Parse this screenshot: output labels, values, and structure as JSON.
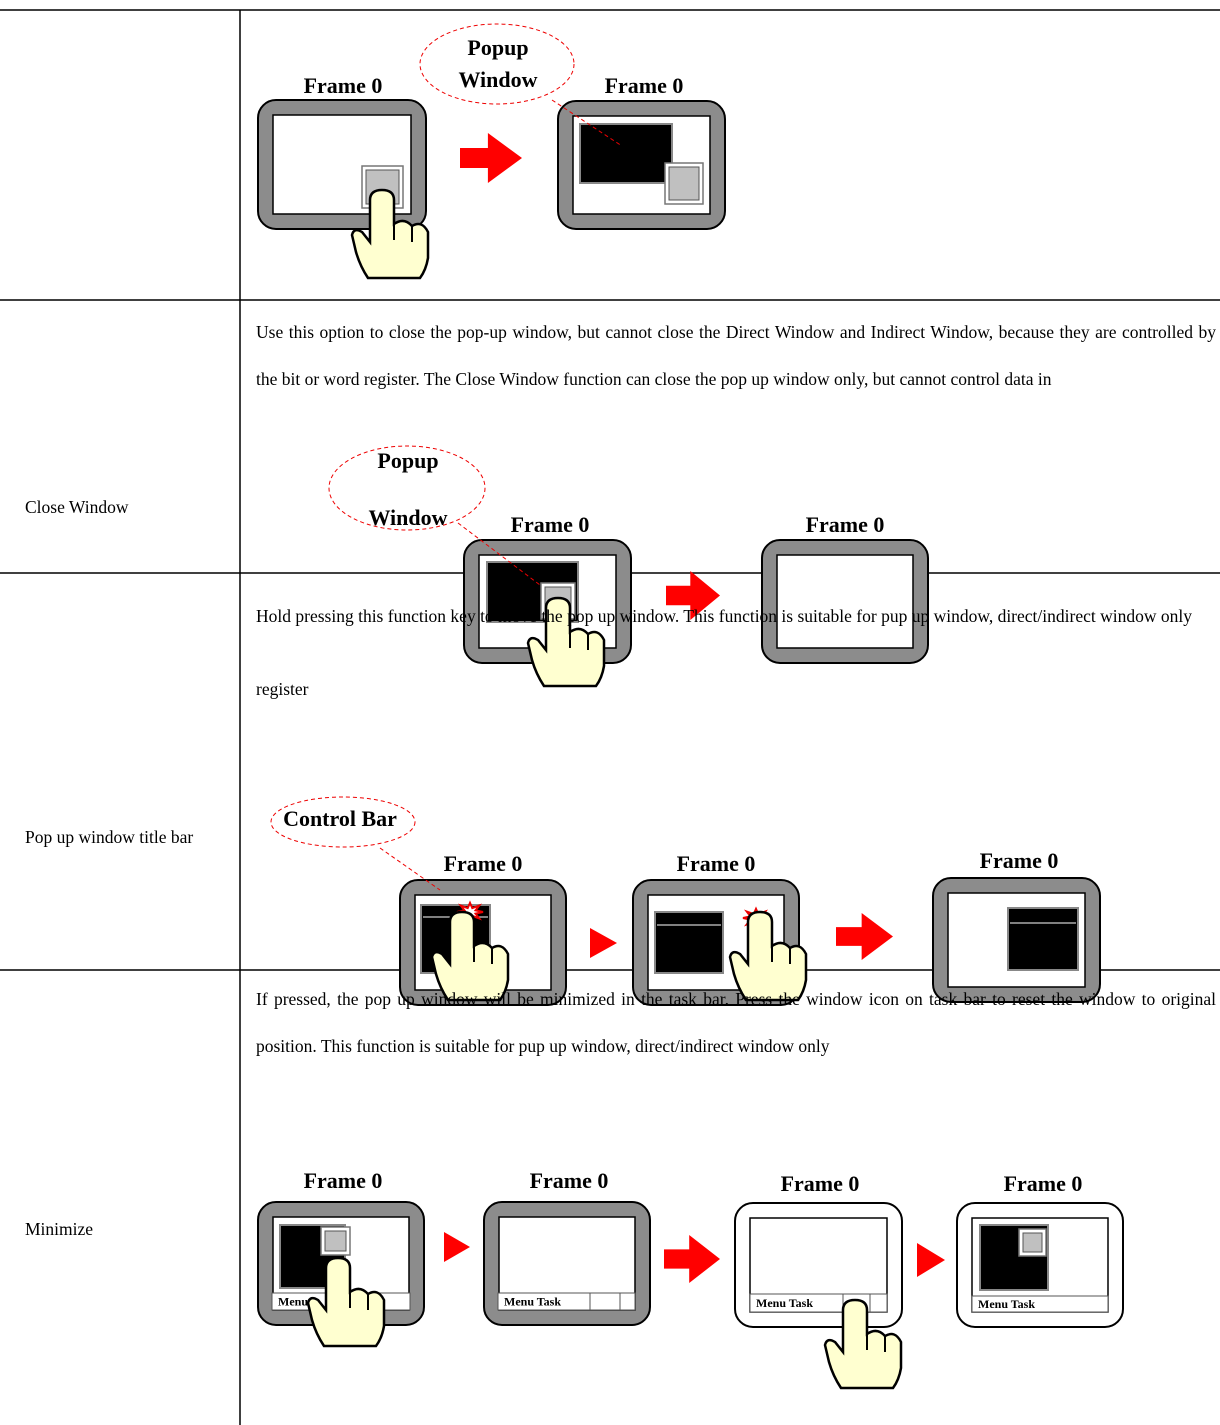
{
  "table": {
    "rows": [
      {
        "figure": {
          "frames": [
            "Frame 0",
            "Frame 0"
          ],
          "callout": [
            "Popup",
            "Window"
          ]
        }
      },
      {
        "label": "Close Window",
        "text": "Use this option to close the pop-up window, but cannot close the Direct Window and Indirect Window, because they are controlled by the bit or word register. The Close Window function can close the pop up window only, but cannot control data in",
        "figure": {
          "callout": [
            "Popup",
            "Window"
          ],
          "frames": [
            "Frame 0",
            "Frame 0"
          ]
        },
        "trailing": "register"
      },
      {
        "label": "Pop up window title bar",
        "text": "Hold pressing this function key to move the pop up window. This function is suitable for pup up window, direct/indirect window only",
        "figure": {
          "callout": [
            "Control Bar"
          ],
          "frames": [
            "Frame 0",
            "Frame 0",
            "Frame 0"
          ]
        }
      },
      {
        "label": "Minimize",
        "text": "If pressed, the pop up window will be minimized in the task bar. Press the window icon on task bar to reset the window to original position. This function is suitable for pup up window, direct/indirect window only",
        "figure": {
          "frames": [
            "Frame 0",
            "Frame 0",
            "Frame 0",
            "Frame 0"
          ],
          "taskbars": [
            "Menu",
            "Menu  Task",
            "Menu  Task",
            "Menu  Task"
          ]
        }
      }
    ]
  }
}
